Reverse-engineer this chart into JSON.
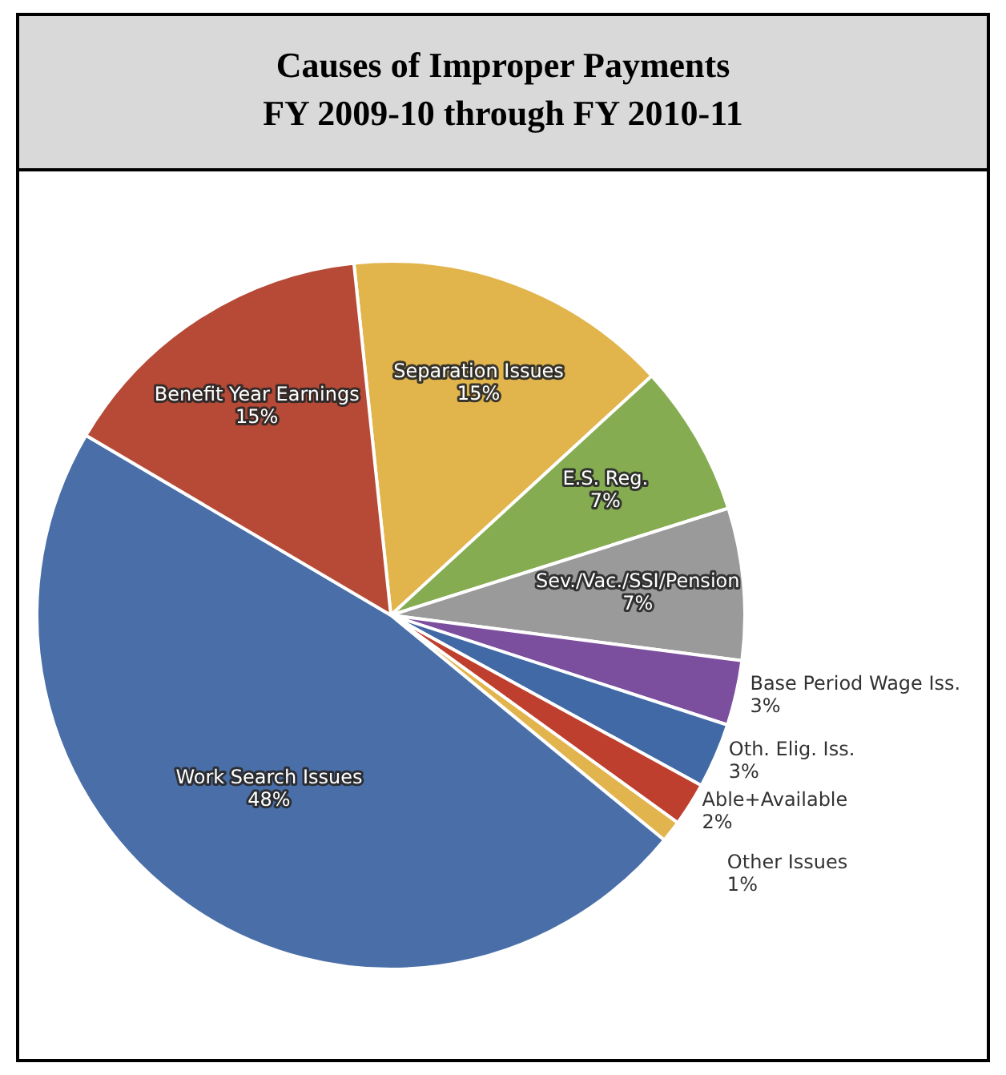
{
  "chart_data": {
    "type": "pie",
    "title": "Causes of Improper Payments",
    "subtitle": "FY 2009-10 through FY 2010-11",
    "categories": [
      "Separation Issues",
      "E.S. Reg.",
      "Sev./Vac./SSI/Pension",
      "Base Period Wage Iss.",
      "Oth. Elig. Iss.",
      "Able+Available",
      "Other Issues",
      "Work Search Issues",
      "Benefit Year Earnings"
    ],
    "values": [
      15,
      7,
      7,
      3,
      3,
      2,
      1,
      48,
      15
    ],
    "colors": [
      "#e1b44c",
      "#86ac52",
      "#9a9a9a",
      "#7c4f9e",
      "#4169a6",
      "#bf3f2e",
      "#e2b44d",
      "#4a6fa8",
      "#b64a36"
    ],
    "data_labels": true,
    "value_labels": [
      "15%",
      "7%",
      "7%",
      "3%",
      "3%",
      "2%",
      "1%",
      "48%",
      "15%"
    ],
    "legend": false
  }
}
